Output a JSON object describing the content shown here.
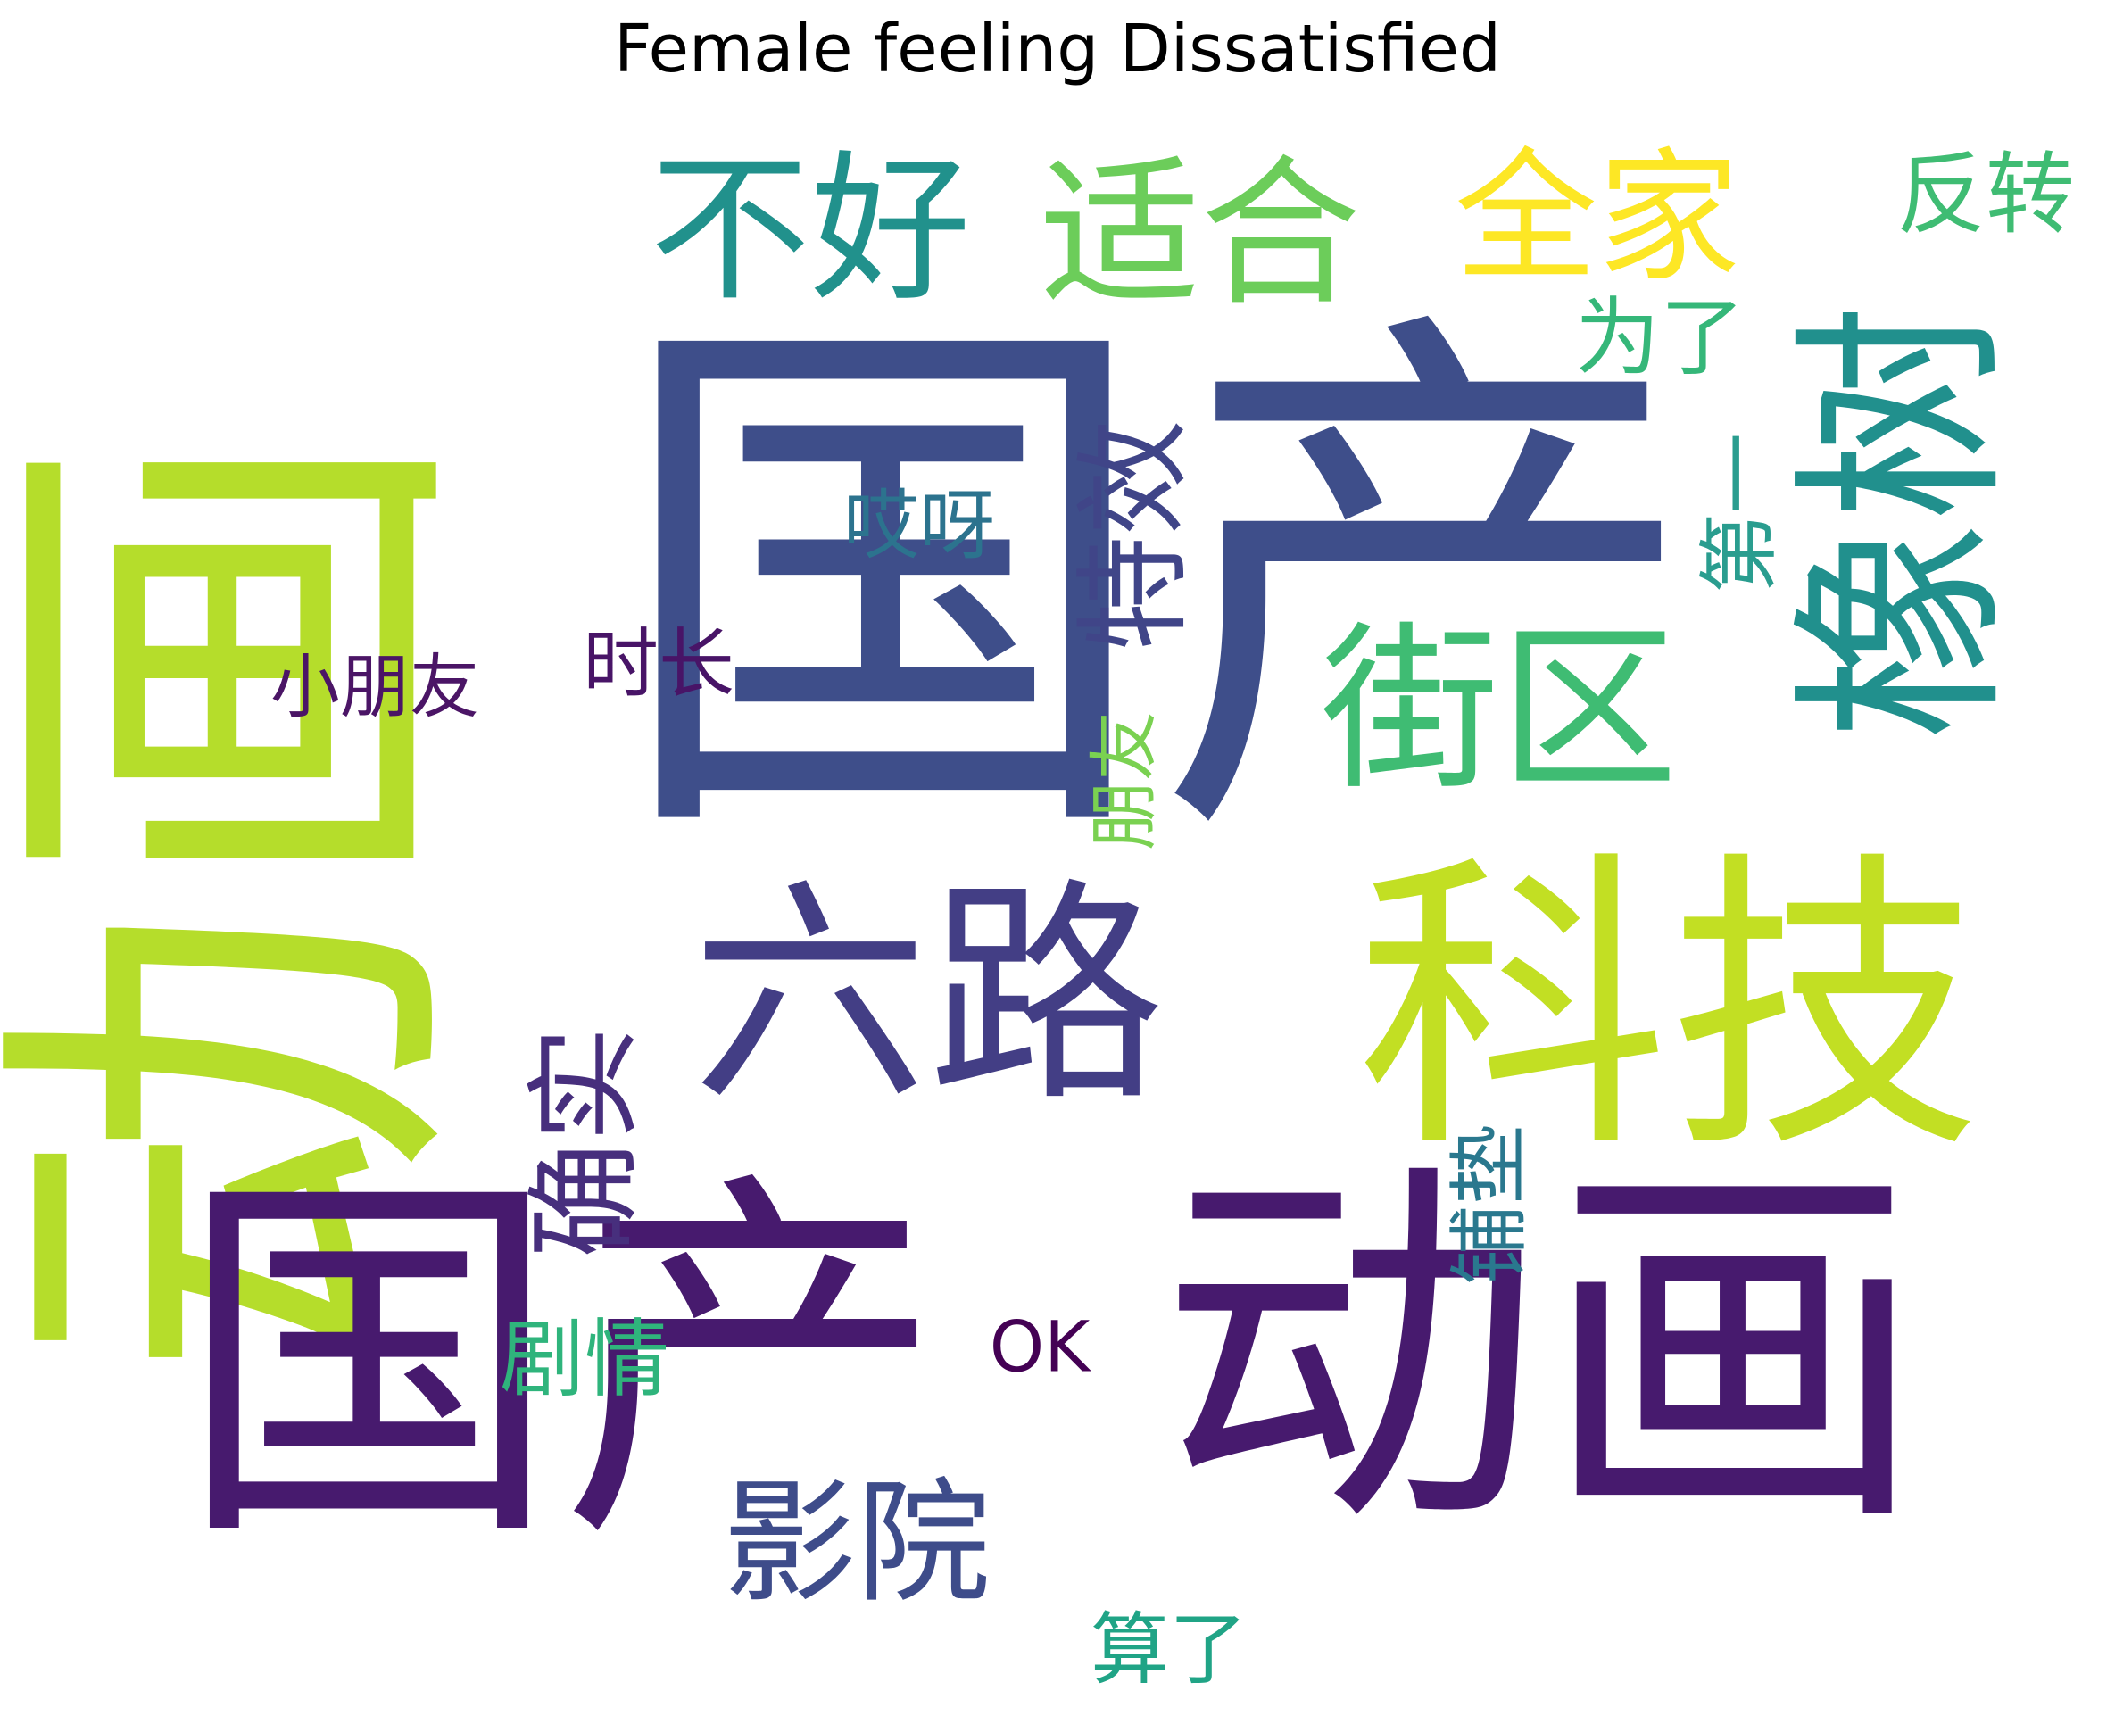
{
  "title": "Female feeling Dissatisfied",
  "words": [
    {
      "text": "国产",
      "color": "#3e4e8a"
    },
    {
      "text": "动画",
      "color": "#b5dd2b"
    },
    {
      "text": "国产",
      "color": "#471a6e"
    },
    {
      "text": "动画",
      "color": "#471a6e"
    },
    {
      "text": "科技",
      "color": "#c2df23"
    },
    {
      "text": "六路",
      "color": "#433e85"
    },
    {
      "text": "橡树",
      "color": "#21908d"
    },
    {
      "text": "街区",
      "color": "#3fbc73"
    },
    {
      "text": "不好",
      "color": "#21918c"
    },
    {
      "text": "适合",
      "color": "#6ccd5a"
    },
    {
      "text": "全家",
      "color": "#fde725"
    },
    {
      "text": "影院",
      "color": "#3e4c8a"
    },
    {
      "text": "特效",
      "color": "#404588"
    },
    {
      "text": "确实",
      "color": "#472f7d"
    },
    {
      "text": "反转",
      "color": "#3fbc73"
    },
    {
      "text": "为了",
      "color": "#35b779"
    },
    {
      "text": "第一",
      "color": "#2a9d8f"
    },
    {
      "text": "哎呀",
      "color": "#2c738e"
    },
    {
      "text": "时长",
      "color": "#481467"
    },
    {
      "text": "小朋友",
      "color": "#4b1566"
    },
    {
      "text": "朋友",
      "color": "#7ad151"
    },
    {
      "text": "铺垫",
      "color": "#2a788e"
    },
    {
      "text": "剧情",
      "color": "#2fb47c"
    },
    {
      "text": "OK",
      "color": "#440154"
    },
    {
      "text": "算了",
      "color": "#20a486"
    }
  ]
}
